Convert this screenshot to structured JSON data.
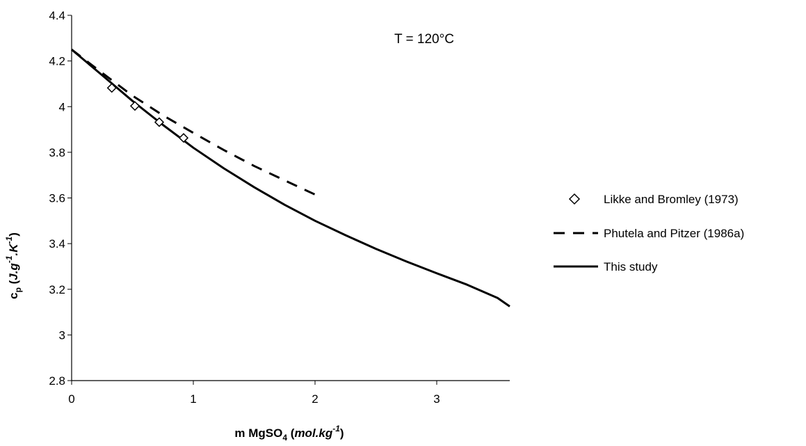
{
  "chart_data": {
    "type": "line",
    "title": "",
    "annotation": "T = 120°C",
    "xlabel": {
      "prefix": "m MgSO",
      "subscript": "4",
      "open": " (",
      "unit": "mol.kg",
      "sup": "-1",
      "close": ")"
    },
    "ylabel": {
      "main": "c",
      "subscript": "p",
      "open": " (",
      "unit1": "J.g",
      "sup1": "-1",
      "unit2": ".K",
      "sup2": "-1",
      "close": ")"
    },
    "xlim": [
      0,
      3.6
    ],
    "ylim": [
      2.8,
      4.4
    ],
    "xticks": [
      0,
      1,
      2,
      3
    ],
    "xtick_labels": [
      "0",
      "1",
      "2",
      "3"
    ],
    "yticks": [
      2.8,
      3.0,
      3.2,
      3.4,
      3.6,
      3.8,
      4.0,
      4.2,
      4.4
    ],
    "ytick_labels": [
      "2.8",
      "3",
      "3.2",
      "3.4",
      "3.6",
      "3.8",
      "4",
      "4.2",
      "4.4"
    ],
    "grid": false,
    "legend_position": "right",
    "series": [
      {
        "name": "Likke and Bromley (1973)",
        "style": "markers",
        "marker": "open-diamond",
        "x": [
          0.33,
          0.52,
          0.72,
          0.92
        ],
        "y": [
          4.082,
          4.003,
          3.932,
          3.863
        ]
      },
      {
        "name": "Phutela and Pitzer (1986a)",
        "style": "dashed",
        "x": [
          0,
          0.25,
          0.5,
          0.75,
          1.0,
          1.25,
          1.5,
          1.75,
          2.0
        ],
        "y": [
          4.25,
          4.148,
          4.048,
          3.962,
          3.885,
          3.81,
          3.74,
          3.677,
          3.615
        ]
      },
      {
        "name": "This study",
        "style": "solid",
        "x": [
          0,
          0.25,
          0.5,
          0.75,
          1.0,
          1.25,
          1.5,
          1.75,
          2.0,
          2.25,
          2.5,
          2.75,
          3.0,
          3.25,
          3.5,
          3.6
        ],
        "y": [
          4.25,
          4.138,
          4.025,
          3.92,
          3.82,
          3.73,
          3.647,
          3.57,
          3.5,
          3.437,
          3.377,
          3.322,
          3.27,
          3.22,
          3.162,
          3.125
        ]
      }
    ]
  }
}
